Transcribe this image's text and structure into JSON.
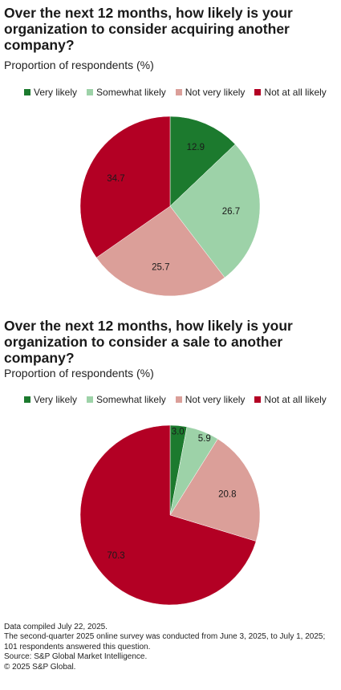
{
  "colors": {
    "very_likely": "#1c7a2e",
    "somewhat_likely": "#9dd2a8",
    "not_very_likely": "#db9f99",
    "not_at_all_likely": "#b30024"
  },
  "chart_data": [
    {
      "type": "pie",
      "title": "Over the next 12 months, how likely is your organization to consider acquiring another company?",
      "subtitle": "Proportion of respondents (%)",
      "legend": [
        "Very likely",
        "Somewhat likely",
        "Not very likely",
        "Not at all likely"
      ],
      "legend_position": "top",
      "categories": [
        "Very likely",
        "Somewhat likely",
        "Not very likely",
        "Not at all likely"
      ],
      "values": [
        12.9,
        26.7,
        25.7,
        34.7
      ]
    },
    {
      "type": "pie",
      "title": "Over the next 12 months, how likely is your organization to consider a sale to another company?",
      "subtitle": "Proportion of respondents (%)",
      "legend": [
        "Very likely",
        "Somewhat likely",
        "Not very likely",
        "Not at all likely"
      ],
      "legend_position": "top",
      "categories": [
        "Very likely",
        "Somewhat likely",
        "Not very likely",
        "Not at all likely"
      ],
      "values": [
        3.0,
        5.9,
        20.8,
        70.3
      ]
    }
  ],
  "footer": {
    "line1": "Data compiled July 22, 2025.",
    "line2": "The second-quarter 2025 online survey was conducted from June 3, 2025, to July 1, 2025; 101 respondents answered this question.",
    "line3": "Source: S&P Global Market Intelligence.",
    "line4": "© 2025 S&P Global."
  }
}
